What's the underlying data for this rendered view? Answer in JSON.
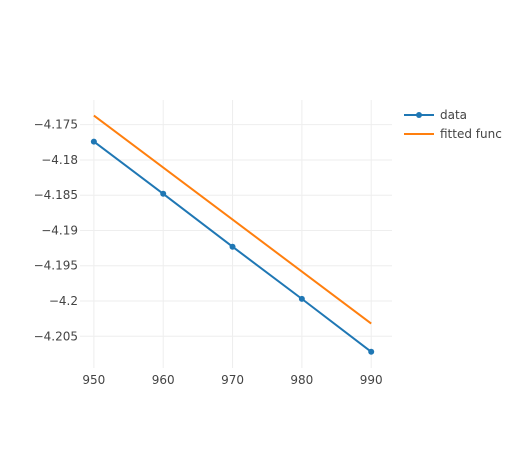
{
  "chart_data": {
    "type": "line",
    "title": "",
    "xlabel": "",
    "ylabel": "",
    "xlim": [
      948,
      993
    ],
    "ylim": [
      -4.2095,
      -4.1715
    ],
    "xticks": [
      950,
      960,
      970,
      980,
      990
    ],
    "xtick_labels": [
      "950",
      "960",
      "970",
      "980",
      "990"
    ],
    "yticks": [
      -4.175,
      -4.18,
      -4.185,
      -4.19,
      -4.195,
      -4.2,
      -4.205
    ],
    "ytick_labels": [
      "−4.175",
      "−4.18",
      "−4.185",
      "−4.19",
      "−4.195",
      "−4.2",
      "−4.205"
    ],
    "grid": true,
    "legend_position": "top-right",
    "series": [
      {
        "name": "data",
        "mode": "lines+markers",
        "color": "#1f77b4",
        "x": [
          950,
          960,
          970,
          980,
          990
        ],
        "y": [
          -4.1774,
          -4.1848,
          -4.1923,
          -4.1997,
          -4.2072
        ]
      },
      {
        "name": "fitted func",
        "mode": "lines",
        "color": "#ff7f0e",
        "x": [
          950,
          990
        ],
        "y": [
          -4.1737,
          -4.2032
        ]
      }
    ]
  }
}
